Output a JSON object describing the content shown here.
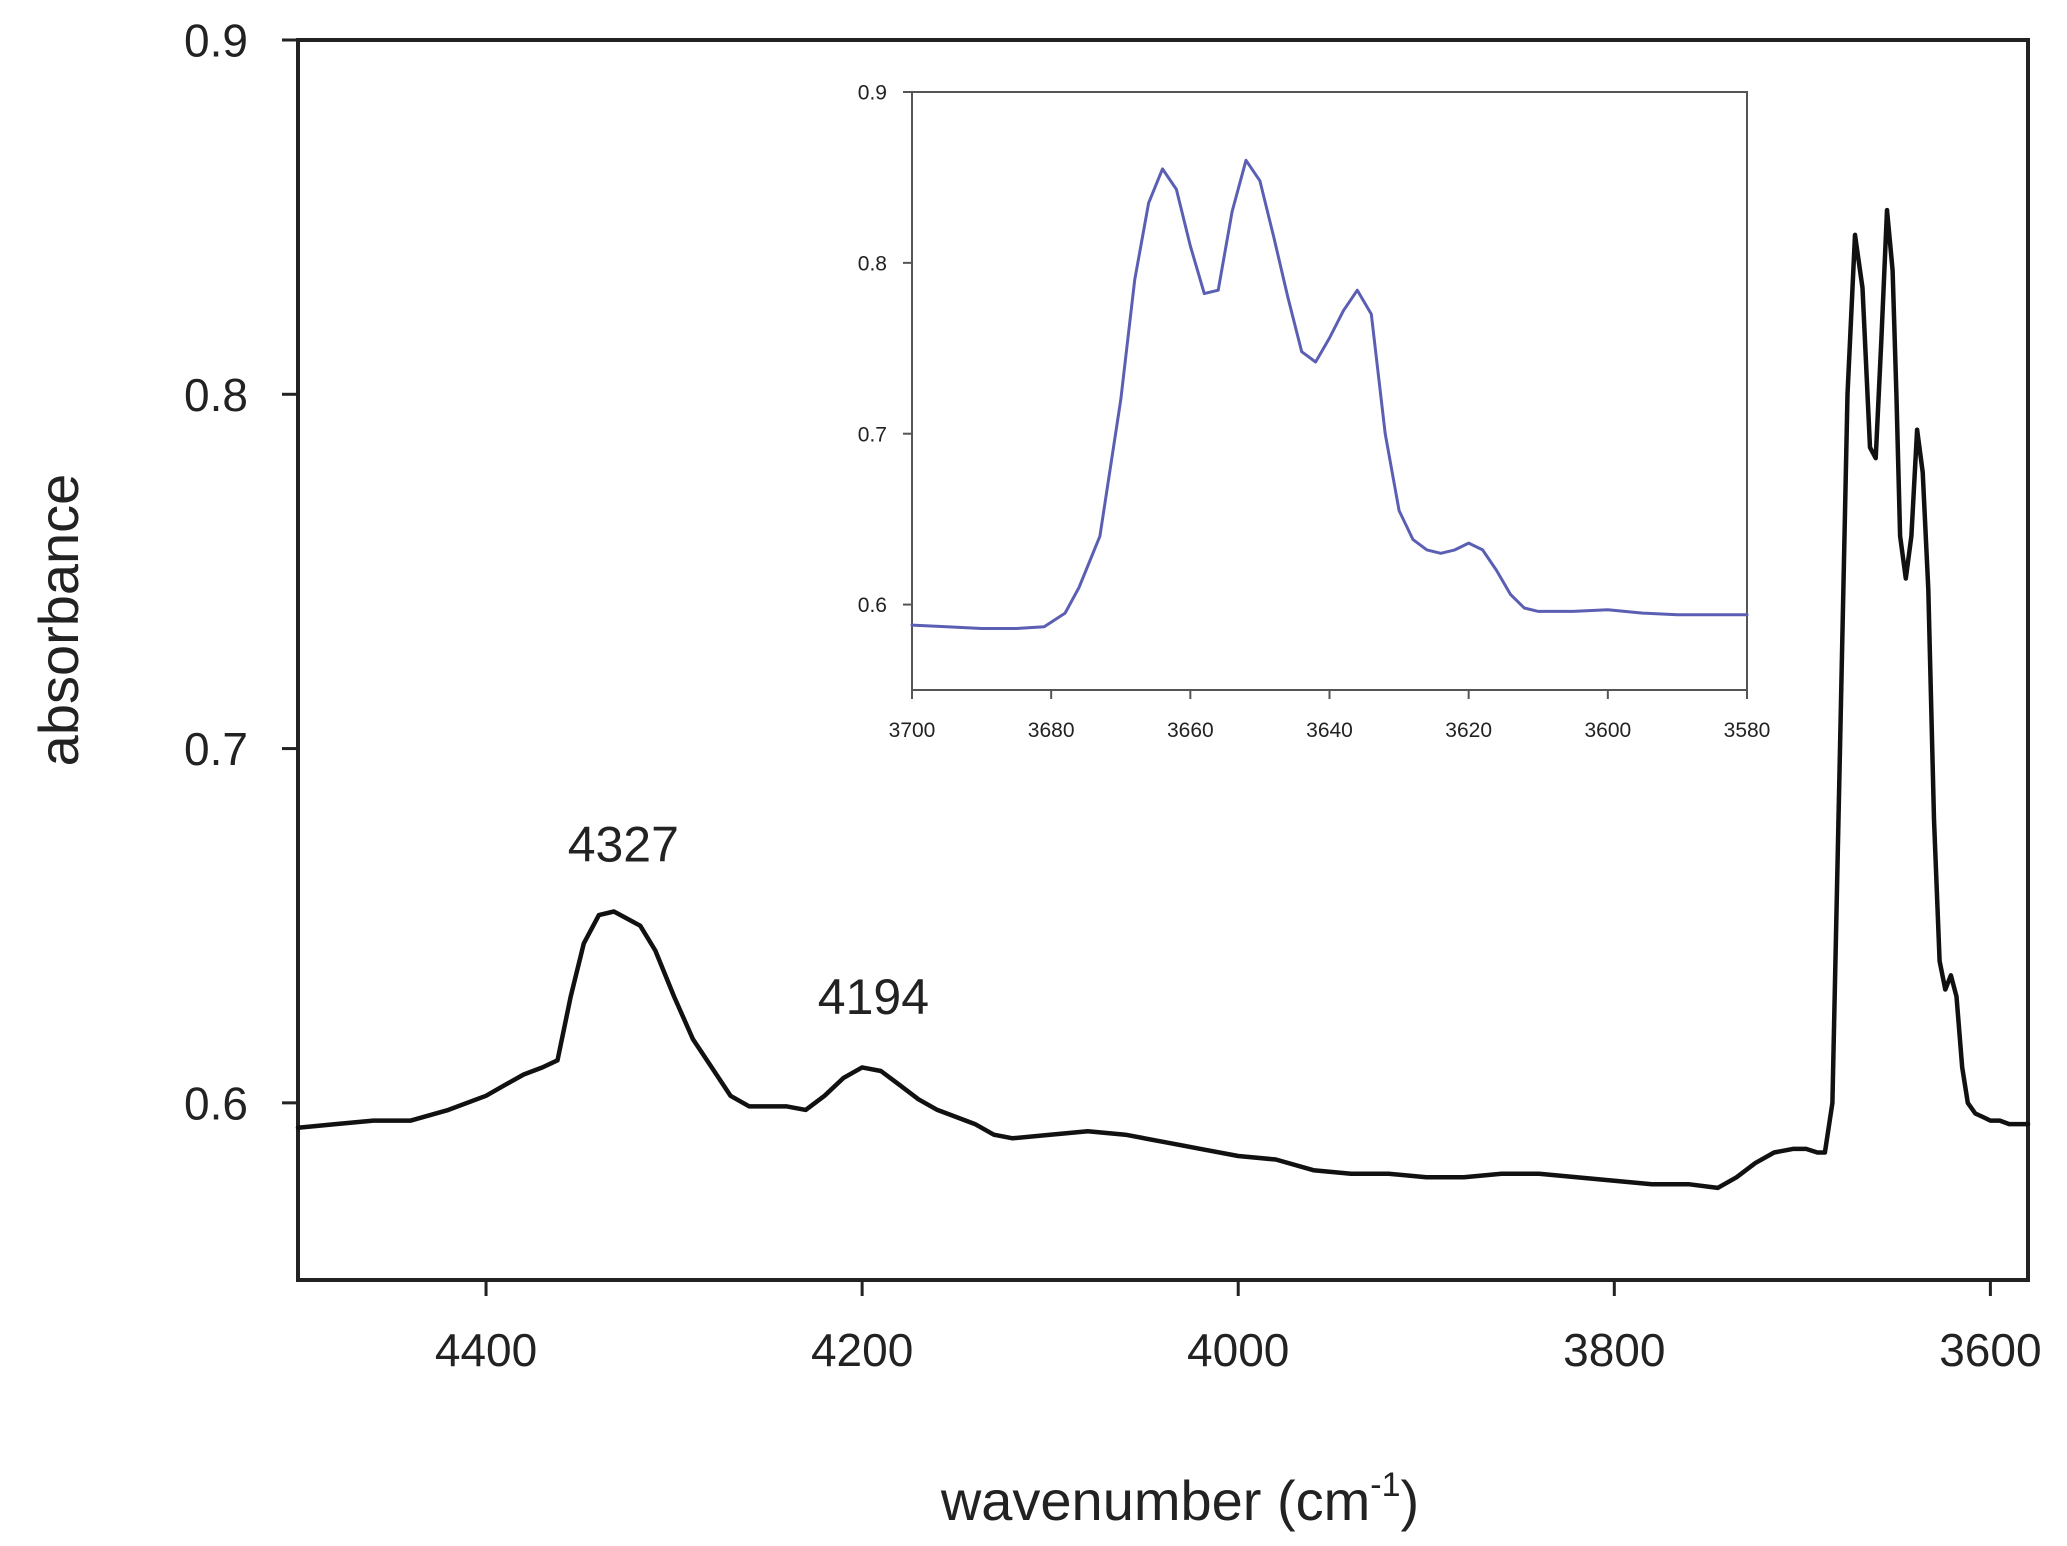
{
  "chart_data": [
    {
      "id": "main",
      "type": "line",
      "title": "",
      "xlabel": "wavenumber (cm",
      "xlabel_sup": "-1",
      "xlabel_close": ")",
      "ylabel": "absorbance",
      "xlim": [
        4500,
        3580
      ],
      "ylim": [
        0.55,
        0.9
      ],
      "x_ticks": [
        4400,
        4200,
        4000,
        3800,
        3600
      ],
      "x_tick_labels": [
        "4400",
        "4200",
        "4000",
        "3800",
        "3600"
      ],
      "y_ticks": [
        0.6,
        0.7,
        0.8,
        0.9
      ],
      "y_tick_labels": [
        "0.6",
        "0.7",
        "0.8",
        "0.9"
      ],
      "grid": false,
      "legend": "none",
      "color": "#111111",
      "annotations": [
        {
          "text": "4327",
          "x": 4327,
          "y": 0.663
        },
        {
          "text": "4194",
          "x": 4194,
          "y": 0.62
        }
      ],
      "series": [
        {
          "x": [
            4500,
            4480,
            4460,
            4440,
            4420,
            4400,
            4390,
            4380,
            4370,
            4362,
            4355,
            4348,
            4340,
            4332,
            4325,
            4318,
            4310,
            4300,
            4290,
            4280,
            4270,
            4260,
            4250,
            4240,
            4230,
            4220,
            4210,
            4200,
            4190,
            4180,
            4170,
            4160,
            4150,
            4140,
            4130,
            4120,
            4100,
            4080,
            4060,
            4040,
            4020,
            4000,
            3980,
            3960,
            3940,
            3920,
            3900,
            3880,
            3860,
            3840,
            3820,
            3800,
            3780,
            3760,
            3745,
            3735,
            3725,
            3715,
            3705,
            3698,
            3692,
            3688,
            3684,
            3680,
            3676,
            3672,
            3668,
            3664,
            3661,
            3658,
            3655,
            3652,
            3650,
            3648,
            3645,
            3642,
            3639,
            3636,
            3633,
            3630,
            3627,
            3624,
            3621,
            3618,
            3615,
            3612,
            3608,
            3604,
            3600,
            3595,
            3590,
            3580
          ],
          "y": [
            0.593,
            0.594,
            0.595,
            0.595,
            0.598,
            0.602,
            0.605,
            0.608,
            0.61,
            0.612,
            0.63,
            0.645,
            0.653,
            0.654,
            0.652,
            0.65,
            0.643,
            0.63,
            0.618,
            0.61,
            0.602,
            0.599,
            0.599,
            0.599,
            0.598,
            0.602,
            0.607,
            0.61,
            0.609,
            0.605,
            0.601,
            0.598,
            0.596,
            0.594,
            0.591,
            0.59,
            0.591,
            0.592,
            0.591,
            0.589,
            0.587,
            0.585,
            0.584,
            0.581,
            0.58,
            0.58,
            0.579,
            0.579,
            0.58,
            0.58,
            0.579,
            0.578,
            0.577,
            0.577,
            0.576,
            0.579,
            0.583,
            0.586,
            0.587,
            0.587,
            0.586,
            0.586,
            0.6,
            0.7,
            0.8,
            0.845,
            0.83,
            0.785,
            0.782,
            0.815,
            0.852,
            0.835,
            0.8,
            0.76,
            0.748,
            0.76,
            0.79,
            0.778,
            0.745,
            0.68,
            0.64,
            0.632,
            0.636,
            0.63,
            0.61,
            0.6,
            0.597,
            0.596,
            0.595,
            0.595,
            0.594,
            0.594
          ]
        }
      ]
    },
    {
      "id": "inset",
      "type": "line",
      "title": "",
      "xlabel": "",
      "ylabel": "",
      "xlim": [
        3700,
        3580
      ],
      "ylim": [
        0.55,
        0.9
      ],
      "x_ticks": [
        3700,
        3680,
        3660,
        3640,
        3620,
        3600,
        3580
      ],
      "x_tick_labels": [
        "3700",
        "3680",
        "3660",
        "3640",
        "3620",
        "3600",
        "3580"
      ],
      "y_ticks": [
        0.6,
        0.7,
        0.8,
        0.9
      ],
      "y_tick_labels": [
        "0.6",
        "0.7",
        "0.8",
        "0.9"
      ],
      "grid": false,
      "legend": "none",
      "color": "#5b5fb3",
      "series": [
        {
          "x": [
            3700,
            3695,
            3690,
            3685,
            3681,
            3678,
            3676,
            3673,
            3670,
            3668,
            3666,
            3664,
            3662,
            3660,
            3658,
            3656,
            3654,
            3652,
            3650,
            3648,
            3646,
            3644,
            3642,
            3640,
            3638,
            3636,
            3634,
            3632,
            3630,
            3628,
            3626,
            3624,
            3622,
            3620,
            3618,
            3616,
            3614,
            3612,
            3610,
            3605,
            3600,
            3595,
            3590,
            3585,
            3580
          ],
          "y": [
            0.588,
            0.587,
            0.586,
            0.586,
            0.587,
            0.595,
            0.61,
            0.64,
            0.72,
            0.79,
            0.835,
            0.855,
            0.843,
            0.81,
            0.782,
            0.784,
            0.83,
            0.86,
            0.848,
            0.815,
            0.78,
            0.748,
            0.742,
            0.756,
            0.772,
            0.784,
            0.77,
            0.7,
            0.655,
            0.638,
            0.632,
            0.63,
            0.632,
            0.636,
            0.632,
            0.62,
            0.606,
            0.598,
            0.596,
            0.596,
            0.597,
            0.595,
            0.594,
            0.594,
            0.594
          ]
        }
      ]
    }
  ]
}
